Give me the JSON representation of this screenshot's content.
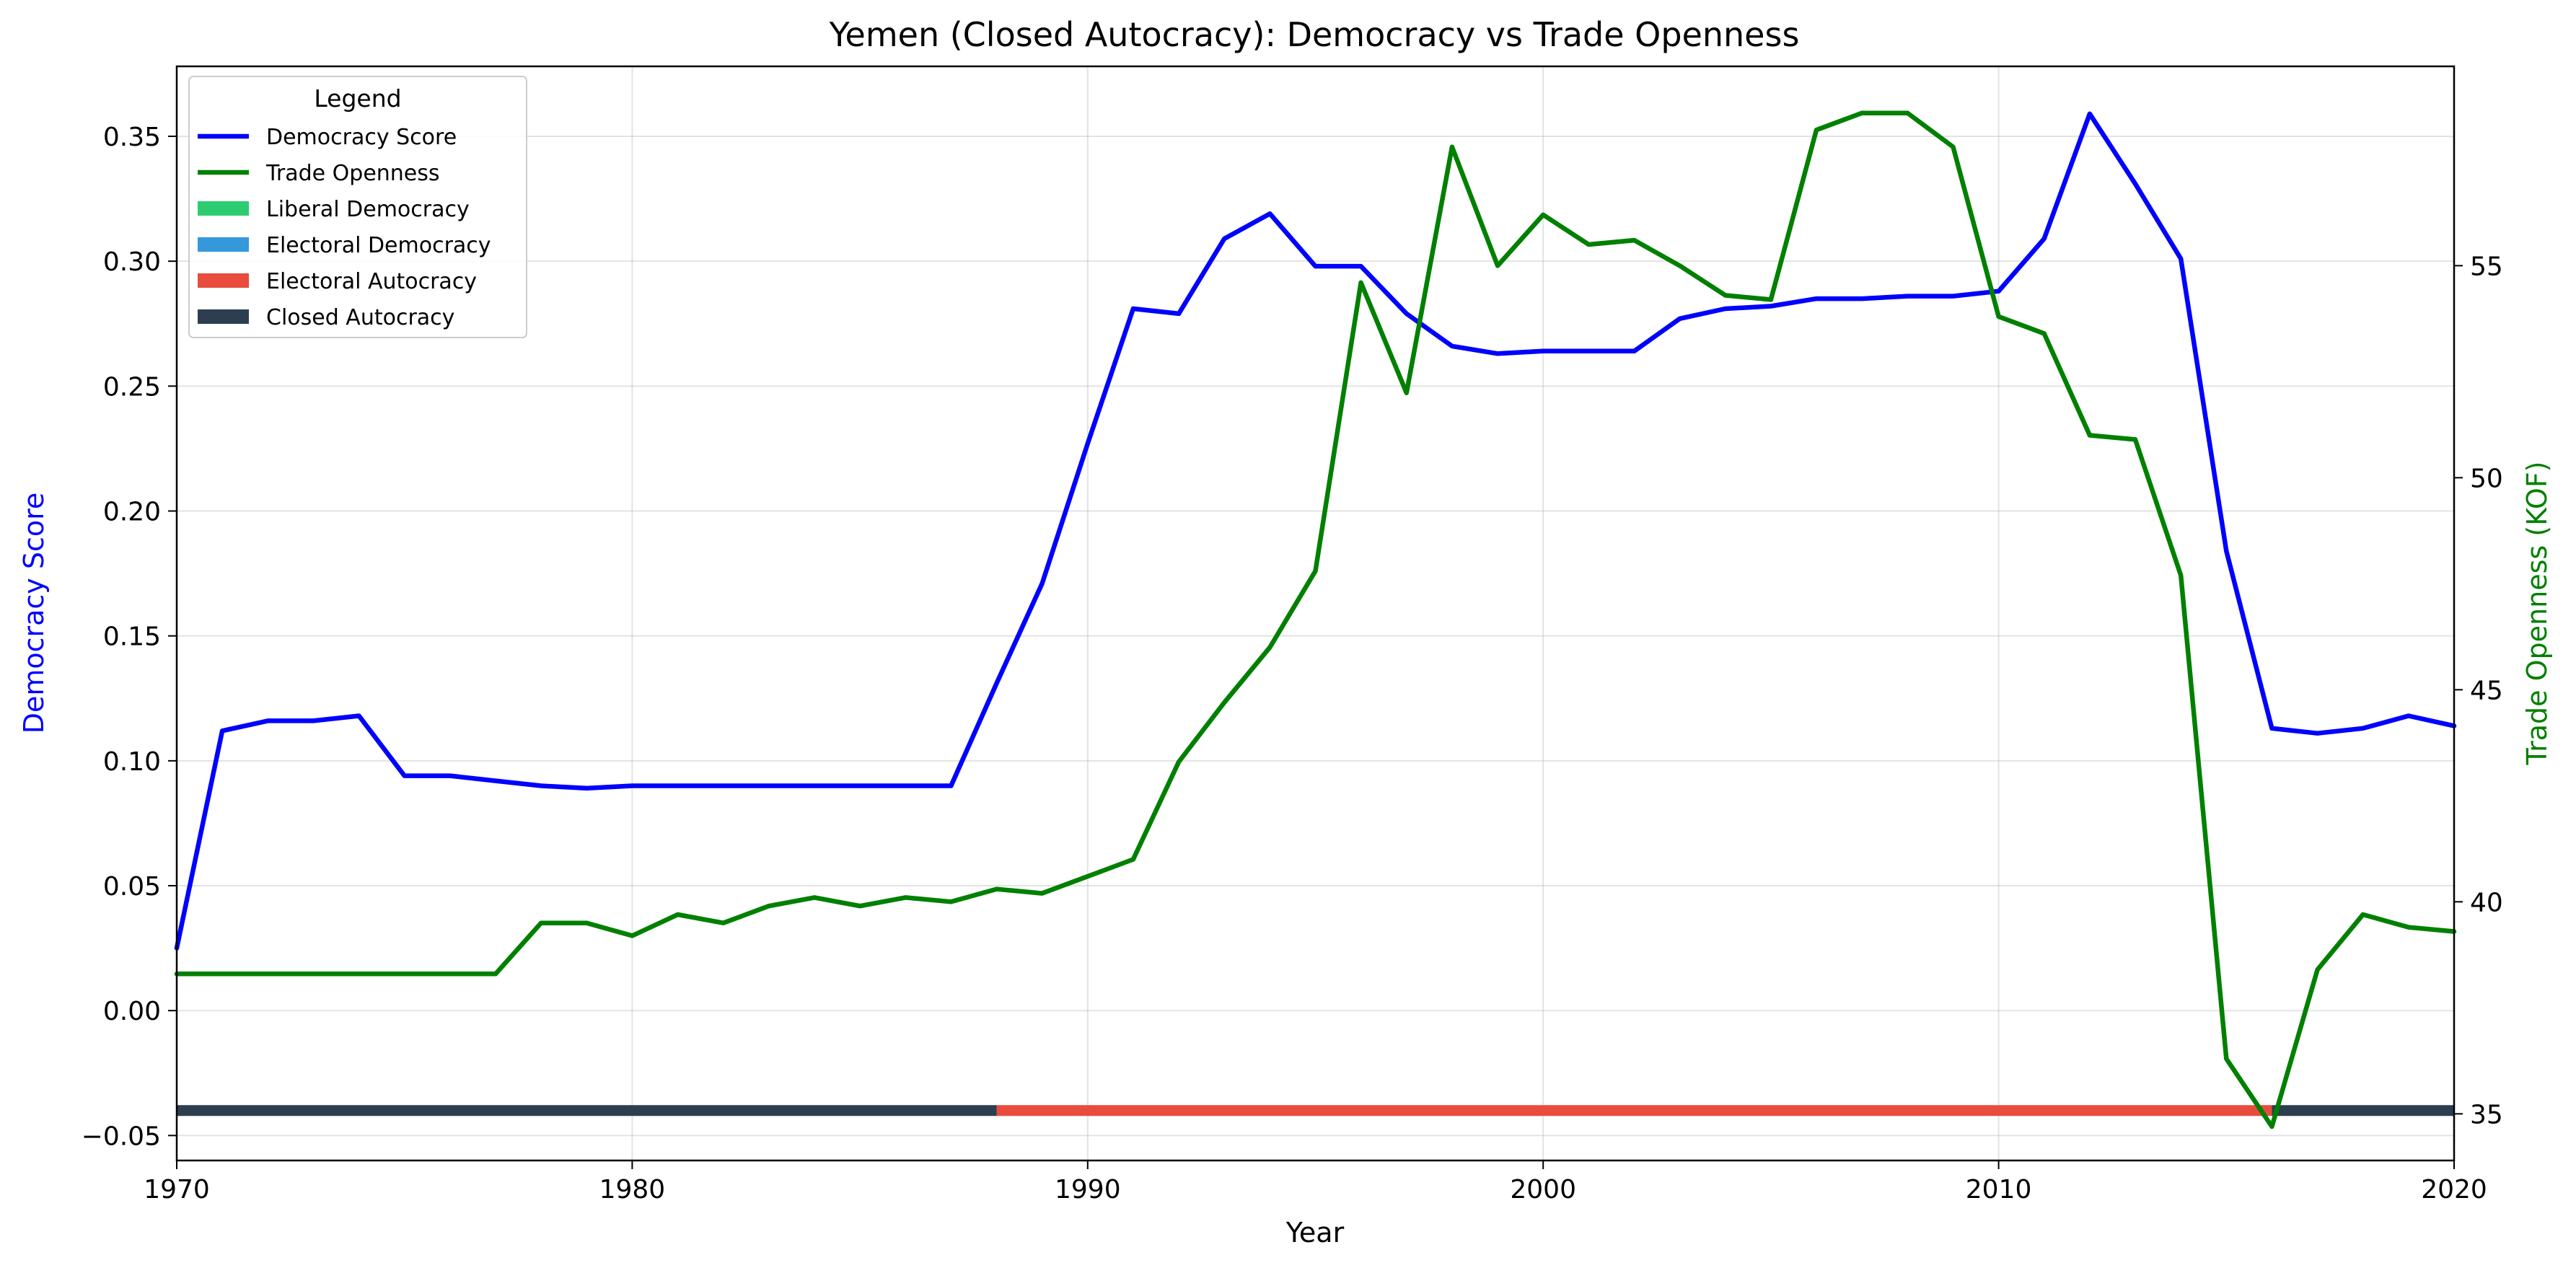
{
  "chart_data": {
    "type": "line",
    "title": "Yemen (Closed Autocracy): Democracy vs Trade Openness",
    "xlabel": "Year",
    "ylabel_left": "Democracy Score",
    "ylabel_right": "Trade Openness (KOF)",
    "xlim": [
      1970,
      2020
    ],
    "ylim_left": [
      -0.06,
      0.378
    ],
    "ylim_right": [
      33.9,
      59.7
    ],
    "x_ticks": [
      1970,
      1980,
      1990,
      2000,
      2010,
      2020
    ],
    "y_ticks_left": [
      -0.05,
      0.0,
      0.05,
      0.1,
      0.15,
      0.2,
      0.25,
      0.3,
      0.35
    ],
    "y_ticks_left_labels": [
      "−0.05",
      "0.00",
      "0.05",
      "0.10",
      "0.15",
      "0.20",
      "0.25",
      "0.30",
      "0.35"
    ],
    "y_ticks_right": [
      35,
      40,
      45,
      50,
      55
    ],
    "grid": true,
    "legend": {
      "title": "Legend",
      "placement": "top-left",
      "entries": [
        {
          "label": "Democracy Score",
          "kind": "line",
          "color": "#0000ff"
        },
        {
          "label": "Trade Openness",
          "kind": "line",
          "color": "#008000"
        },
        {
          "label": "Liberal Democracy",
          "kind": "patch",
          "color": "#2ecc71"
        },
        {
          "label": "Electoral Democracy",
          "kind": "patch",
          "color": "#3498db"
        },
        {
          "label": "Electoral Autocracy",
          "kind": "patch",
          "color": "#e74c3c"
        },
        {
          "label": "Closed Autocracy",
          "kind": "patch",
          "color": "#2c3e50"
        }
      ]
    },
    "series": [
      {
        "name": "Democracy Score",
        "axis": "left",
        "color": "#0000ff",
        "x": [
          1970,
          1971,
          1972,
          1973,
          1974,
          1975,
          1976,
          1977,
          1978,
          1979,
          1980,
          1981,
          1982,
          1983,
          1984,
          1985,
          1986,
          1987,
          1988,
          1989,
          1990,
          1991,
          1992,
          1993,
          1994,
          1995,
          1996,
          1997,
          1998,
          1999,
          2000,
          2001,
          2002,
          2003,
          2004,
          2005,
          2006,
          2007,
          2008,
          2009,
          2010,
          2011,
          2012,
          2013,
          2014,
          2015,
          2016,
          2017,
          2018,
          2019,
          2020
        ],
        "values": [
          0.025,
          0.112,
          0.116,
          0.116,
          0.118,
          0.094,
          0.094,
          0.092,
          0.09,
          0.089,
          0.09,
          0.09,
          0.09,
          0.09,
          0.09,
          0.09,
          0.09,
          0.09,
          0.131,
          0.171,
          0.227,
          0.281,
          0.279,
          0.309,
          0.319,
          0.298,
          0.298,
          0.279,
          0.266,
          0.263,
          0.264,
          0.264,
          0.264,
          0.277,
          0.281,
          0.282,
          0.285,
          0.285,
          0.286,
          0.286,
          0.288,
          0.309,
          0.359,
          0.331,
          0.301,
          0.184,
          0.113,
          0.111,
          0.113,
          0.118,
          0.114
        ]
      },
      {
        "name": "Trade Openness",
        "axis": "right",
        "color": "#008000",
        "x": [
          1970,
          1971,
          1972,
          1973,
          1974,
          1975,
          1976,
          1977,
          1978,
          1979,
          1980,
          1981,
          1982,
          1983,
          1984,
          1985,
          1986,
          1987,
          1988,
          1989,
          1990,
          1991,
          1992,
          1993,
          1994,
          1995,
          1996,
          1997,
          1998,
          1999,
          2000,
          2001,
          2002,
          2003,
          2004,
          2005,
          2006,
          2007,
          2008,
          2009,
          2010,
          2011,
          2012,
          2013,
          2014,
          2015,
          2016,
          2017,
          2018,
          2019,
          2020
        ],
        "values": [
          38.3,
          38.3,
          38.3,
          38.3,
          38.3,
          38.3,
          38.3,
          38.3,
          39.5,
          39.5,
          39.2,
          39.7,
          39.5,
          39.9,
          40.1,
          39.9,
          40.1,
          40.0,
          40.3,
          40.2,
          40.6,
          41.0,
          43.3,
          44.7,
          46.0,
          47.8,
          54.6,
          52.0,
          57.8,
          55.0,
          56.2,
          55.5,
          55.6,
          55.0,
          54.3,
          54.2,
          58.2,
          58.6,
          58.6,
          57.8,
          53.8,
          53.4,
          51.0,
          50.9,
          47.7,
          36.3,
          34.7,
          38.4,
          39.7,
          39.4,
          39.3
        ]
      }
    ],
    "regime_band": {
      "y": -0.04,
      "segments": [
        {
          "label": "Closed Autocracy",
          "start": 1970,
          "end": 1988,
          "color": "#2c3e50"
        },
        {
          "label": "Electoral Autocracy",
          "start": 1988,
          "end": 2016,
          "color": "#e74c3c"
        },
        {
          "label": "Closed Autocracy",
          "start": 2016,
          "end": 2020,
          "color": "#2c3e50"
        }
      ]
    }
  }
}
